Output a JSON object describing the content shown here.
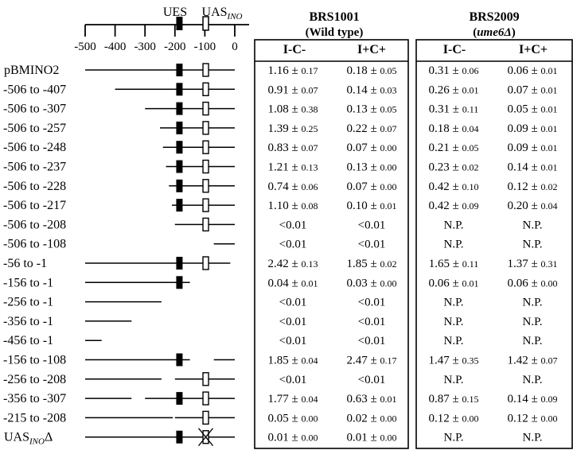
{
  "scale": {
    "ues_label": "UES",
    "uas_label": "UAS",
    "uas_sub": "INO",
    "ticks": [
      -500,
      -400,
      -300,
      -200,
      -100,
      0
    ],
    "ues_pos": -185,
    "uas_pos": -97
  },
  "strains": [
    {
      "name": "BRS1001",
      "genotype": "(Wild type)",
      "genotype_italic": false,
      "col1": "I-C-",
      "col2": "I+C+"
    },
    {
      "name": "BRS2009",
      "genotype_pre": "(",
      "genotype": "ume6Δ",
      "genotype_post": ")",
      "genotype_italic": true,
      "col1": "I-C-",
      "col2": "I+C+"
    }
  ],
  "rows": [
    {
      "label": "pBMINO2",
      "segments": [
        [
          -500,
          0
        ]
      ],
      "ues": true,
      "uas": true,
      "uas_deleted": false,
      "wt": [
        [
          "1.16",
          "0.17"
        ],
        [
          "0.18",
          "0.05"
        ]
      ],
      "ume6": [
        [
          "0.31",
          "0.06"
        ],
        [
          "0.06",
          "0.01"
        ]
      ]
    },
    {
      "label": "-506 to -407",
      "segments": [
        [
          -400,
          0
        ]
      ],
      "ues": true,
      "uas": true,
      "uas_deleted": false,
      "wt": [
        [
          "0.91",
          "0.07"
        ],
        [
          "0.14",
          "0.03"
        ]
      ],
      "ume6": [
        [
          "0.26",
          "0.01"
        ],
        [
          "0.07",
          "0.01"
        ]
      ]
    },
    {
      "label": "-506 to -307",
      "segments": [
        [
          -300,
          0
        ]
      ],
      "ues": true,
      "uas": true,
      "uas_deleted": false,
      "wt": [
        [
          "1.08",
          "0.38"
        ],
        [
          "0.13",
          "0.05"
        ]
      ],
      "ume6": [
        [
          "0.31",
          "0.11"
        ],
        [
          "0.05",
          "0.01"
        ]
      ]
    },
    {
      "label": "-506 to -257",
      "segments": [
        [
          -250,
          0
        ]
      ],
      "ues": true,
      "uas": true,
      "uas_deleted": false,
      "wt": [
        [
          "1.39",
          "0.25"
        ],
        [
          "0.22",
          "0.07"
        ]
      ],
      "ume6": [
        [
          "0.18",
          "0.04"
        ],
        [
          "0.09",
          "0.01"
        ]
      ]
    },
    {
      "label": "-506 to -248",
      "segments": [
        [
          -240,
          0
        ]
      ],
      "ues": true,
      "uas": true,
      "uas_deleted": false,
      "wt": [
        [
          "0.83",
          "0.07"
        ],
        [
          "0.07",
          "0.00"
        ]
      ],
      "ume6": [
        [
          "0.21",
          "0.05"
        ],
        [
          "0.09",
          "0.01"
        ]
      ]
    },
    {
      "label": "-506 to -237",
      "segments": [
        [
          -230,
          0
        ]
      ],
      "ues": true,
      "uas": true,
      "uas_deleted": false,
      "wt": [
        [
          "1.21",
          "0.13"
        ],
        [
          "0.13",
          "0.00"
        ]
      ],
      "ume6": [
        [
          "0.23",
          "0.02"
        ],
        [
          "0.14",
          "0.01"
        ]
      ]
    },
    {
      "label": "-506 to -228",
      "segments": [
        [
          -220,
          0
        ]
      ],
      "ues": true,
      "uas": true,
      "uas_deleted": false,
      "wt": [
        [
          "0.74",
          "0.06"
        ],
        [
          "0.07",
          "0.00"
        ]
      ],
      "ume6": [
        [
          "0.42",
          "0.10"
        ],
        [
          "0.12",
          "0.02"
        ]
      ]
    },
    {
      "label": "-506 to -217",
      "segments": [
        [
          -210,
          0
        ]
      ],
      "ues": true,
      "uas": true,
      "uas_deleted": false,
      "wt": [
        [
          "1.10",
          "0.08"
        ],
        [
          "0.10",
          "0.01"
        ]
      ],
      "ume6": [
        [
          "0.42",
          "0.09"
        ],
        [
          "0.20",
          "0.04"
        ]
      ]
    },
    {
      "label": "-506 to -208",
      "segments": [
        [
          -200,
          0
        ]
      ],
      "ues": false,
      "uas": true,
      "uas_deleted": false,
      "wt": [
        "<0.01",
        "<0.01"
      ],
      "ume6": [
        "N.P.",
        "N.P."
      ]
    },
    {
      "label": "-506 to -108",
      "segments": [
        [
          -70,
          0
        ]
      ],
      "ues": false,
      "uas": false,
      "uas_deleted": false,
      "wt": [
        "<0.01",
        "<0.01"
      ],
      "ume6": [
        "N.P.",
        "N.P."
      ]
    },
    {
      "label": "-56 to -1",
      "segments": [
        [
          -500,
          -15
        ]
      ],
      "ues": true,
      "uas": true,
      "uas_deleted": false,
      "wt": [
        [
          "2.42",
          "0.13"
        ],
        [
          "1.85",
          "0.02"
        ]
      ],
      "ume6": [
        [
          "1.65",
          "0.11"
        ],
        [
          "1.37",
          "0.31"
        ]
      ]
    },
    {
      "label": "-156 to -1",
      "segments": [
        [
          -500,
          -150
        ]
      ],
      "ues": true,
      "uas": false,
      "uas_deleted": false,
      "wt": [
        [
          "0.04",
          "0.01"
        ],
        [
          "0.03",
          "0.00"
        ]
      ],
      "ume6": [
        [
          "0.06",
          "0.01"
        ],
        [
          "0.06",
          "0.00"
        ]
      ]
    },
    {
      "label": "-256 to -1",
      "segments": [
        [
          -500,
          -245
        ]
      ],
      "ues": false,
      "uas": false,
      "uas_deleted": false,
      "wt": [
        "<0.01",
        "<0.01"
      ],
      "ume6": [
        "N.P.",
        "N.P."
      ]
    },
    {
      "label": "-356 to -1",
      "segments": [
        [
          -500,
          -345
        ]
      ],
      "ues": false,
      "uas": false,
      "uas_deleted": false,
      "wt": [
        "<0.01",
        "<0.01"
      ],
      "ume6": [
        "N.P.",
        "N.P."
      ]
    },
    {
      "label": "-456 to -1",
      "segments": [
        [
          -500,
          -445
        ]
      ],
      "ues": false,
      "uas": false,
      "uas_deleted": false,
      "wt": [
        "<0.01",
        "<0.01"
      ],
      "ume6": [
        "N.P.",
        "N.P."
      ]
    },
    {
      "label": "-156 to -108",
      "segments": [
        [
          -500,
          -150
        ],
        [
          -70,
          0
        ]
      ],
      "ues": true,
      "uas": false,
      "uas_deleted": false,
      "wt": [
        [
          "1.85",
          "0.04"
        ],
        [
          "2.47",
          "0.17"
        ]
      ],
      "ume6": [
        [
          "1.47",
          "0.35"
        ],
        [
          "1.42",
          "0.07"
        ]
      ]
    },
    {
      "label": "-256 to -208",
      "segments": [
        [
          -500,
          -245
        ],
        [
          -200,
          0
        ]
      ],
      "ues": false,
      "uas": true,
      "uas_deleted": false,
      "wt": [
        "<0.01",
        "<0.01"
      ],
      "ume6": [
        "N.P.",
        "N.P."
      ]
    },
    {
      "label": "-356 to -307",
      "segments": [
        [
          -500,
          -345
        ],
        [
          -300,
          0
        ]
      ],
      "ues": true,
      "uas": true,
      "uas_deleted": false,
      "wt": [
        [
          "1.77",
          "0.04"
        ],
        [
          "0.63",
          "0.01"
        ]
      ],
      "ume6": [
        [
          "0.87",
          "0.15"
        ],
        [
          "0.14",
          "0.09"
        ]
      ]
    },
    {
      "label": "-215 to -208",
      "segments": [
        [
          -500,
          -207
        ],
        [
          -200,
          0
        ]
      ],
      "ues": false,
      "uas": true,
      "uas_deleted": false,
      "wt": [
        [
          "0.05",
          "0.00"
        ],
        [
          "0.02",
          "0.00"
        ]
      ],
      "ume6": [
        [
          "0.12",
          "0.00"
        ],
        [
          "0.12",
          "0.00"
        ]
      ]
    },
    {
      "label": "UAS",
      "label_sub": "INO",
      "label_suffix": "Δ",
      "segments": [
        [
          -500,
          0
        ]
      ],
      "ues": true,
      "uas": true,
      "uas_deleted": true,
      "wt": [
        [
          "0.01",
          "0.00"
        ],
        [
          "0.01",
          "0.00"
        ]
      ],
      "ume6": [
        "N.P.",
        "N.P."
      ]
    }
  ]
}
